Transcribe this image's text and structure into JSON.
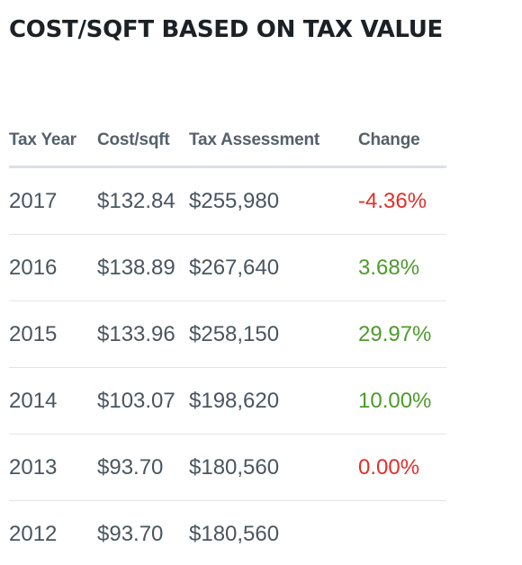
{
  "title": "COST/SQFT BASED ON TAX VALUE",
  "table": {
    "headers": [
      "Tax Year",
      "Cost/sqft",
      "Tax Assessment",
      "Change"
    ],
    "rows": [
      {
        "year": "2017",
        "cost": "$132.84",
        "assessment": "$255,980",
        "change": "-4.36%",
        "direction": "negative"
      },
      {
        "year": "2016",
        "cost": "$138.89",
        "assessment": "$267,640",
        "change": "3.68%",
        "direction": "positive"
      },
      {
        "year": "2015",
        "cost": "$133.96",
        "assessment": "$258,150",
        "change": "29.97%",
        "direction": "positive"
      },
      {
        "year": "2014",
        "cost": "$103.07",
        "assessment": "$198,620",
        "change": "10.00%",
        "direction": "positive"
      },
      {
        "year": "2013",
        "cost": "$93.70",
        "assessment": "$180,560",
        "change": "0.00%",
        "direction": "negative"
      },
      {
        "year": "2012",
        "cost": "$93.70",
        "assessment": "$180,560",
        "change": "",
        "direction": "none"
      }
    ]
  },
  "colors": {
    "negative": "#e0302a",
    "positive": "#4e9a2e"
  }
}
